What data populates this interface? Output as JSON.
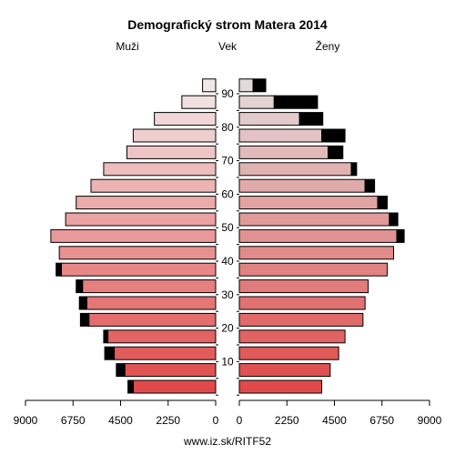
{
  "chart_data": {
    "type": "bar",
    "orientation": "horizontal",
    "layout": "population-pyramid",
    "title": "Demografický strom Matera 2014",
    "left_label": "Muži",
    "center_label": "Vek",
    "right_label": "Ženy",
    "age_groups": [
      "0-4",
      "5-9",
      "10-14",
      "15-19",
      "20-24",
      "25-29",
      "30-34",
      "35-39",
      "40-44",
      "45-49",
      "50-54",
      "55-59",
      "60-64",
      "65-69",
      "70-74",
      "75-79",
      "80-84",
      "85-89",
      "90+"
    ],
    "age_ticks": [
      "10",
      "20",
      "30",
      "40",
      "50",
      "60",
      "70",
      "80",
      "90"
    ],
    "x_ticks": [
      "9000",
      "6750",
      "4500",
      "2250",
      "0",
      "2250",
      "4500",
      "6750",
      "9000"
    ],
    "xlim": [
      0,
      9000
    ],
    "series": [
      {
        "name": "Muži",
        "values": [
          3900,
          4300,
          4800,
          5100,
          6000,
          6100,
          6300,
          7300,
          7400,
          7800,
          7100,
          6600,
          5900,
          5300,
          4200,
          3900,
          2900,
          1600,
          620
        ],
        "overflow": [
          250,
          400,
          450,
          200,
          400,
          350,
          300,
          250,
          0,
          0,
          0,
          0,
          0,
          0,
          0,
          0,
          0,
          0,
          0
        ]
      },
      {
        "name": "Ženy",
        "values": [
          3900,
          4300,
          4700,
          5000,
          5850,
          5950,
          6100,
          7000,
          7300,
          7450,
          7100,
          6550,
          5950,
          5300,
          4200,
          3900,
          2850,
          1650,
          650
        ],
        "overflow": [
          0,
          0,
          0,
          0,
          0,
          0,
          0,
          0,
          0,
          350,
          400,
          450,
          450,
          250,
          700,
          1100,
          1100,
          2050,
          600
        ]
      }
    ],
    "credit": "www.iz.sk/RITF52"
  }
}
